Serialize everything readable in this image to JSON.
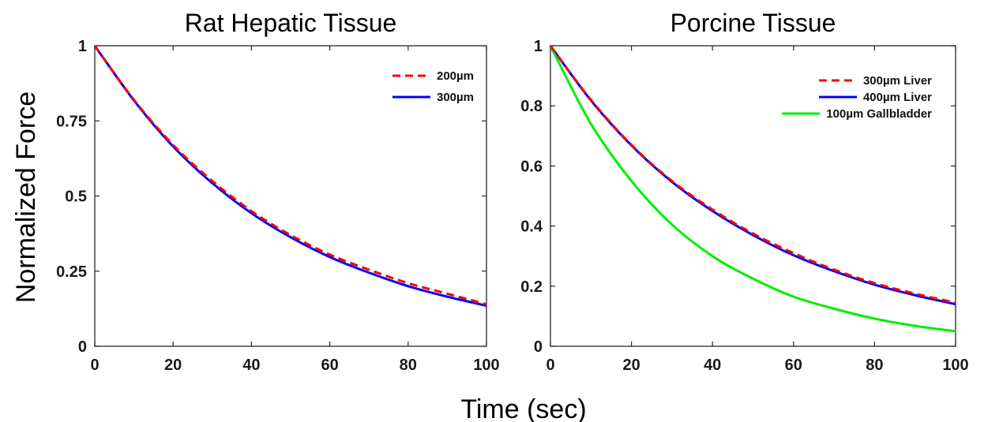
{
  "figure": {
    "ylabel": "Normalized Force",
    "xlabel": "Time (sec)"
  },
  "chart_data": [
    {
      "type": "line",
      "title": "Rat Hepatic Tissue",
      "xlabel": "",
      "ylabel": "",
      "xlim": [
        0,
        100
      ],
      "ylim": [
        0,
        1
      ],
      "xticks": [
        0,
        20,
        40,
        60,
        80,
        100
      ],
      "xtick_labels": [
        "0",
        "20",
        "40",
        "60",
        "80",
        "100"
      ],
      "yticks": [
        0,
        0.25,
        0.5,
        0.75,
        1
      ],
      "ytick_labels": [
        "0",
        "0.25",
        "0.5",
        "0.75",
        "1"
      ],
      "grid": false,
      "legend_position": "top-right",
      "x": [
        0,
        10,
        20,
        30,
        40,
        50,
        60,
        70,
        80,
        90,
        100
      ],
      "series": [
        {
          "name": "200µm",
          "color": "#ff0000",
          "dash": "dashed",
          "values": [
            1.0,
            0.82,
            0.67,
            0.55,
            0.45,
            0.37,
            0.305,
            0.255,
            0.21,
            0.175,
            0.14
          ]
        },
        {
          "name": "300µm",
          "color": "#0000ff",
          "dash": "solid",
          "values": [
            1.0,
            0.818,
            0.665,
            0.543,
            0.443,
            0.363,
            0.297,
            0.245,
            0.2,
            0.165,
            0.135
          ]
        }
      ]
    },
    {
      "type": "line",
      "title": "Porcine Tissue",
      "xlabel": "",
      "ylabel": "",
      "xlim": [
        0,
        100
      ],
      "ylim": [
        0,
        1
      ],
      "xticks": [
        0,
        20,
        40,
        60,
        80,
        100
      ],
      "xtick_labels": [
        "0",
        "20",
        "40",
        "60",
        "80",
        "100"
      ],
      "yticks": [
        0,
        0.2,
        0.4,
        0.6,
        0.8,
        1
      ],
      "ytick_labels": [
        "0",
        "0.2",
        "0.4",
        "0.6",
        "0.8",
        "1"
      ],
      "grid": false,
      "legend_position": "top-right",
      "x": [
        0,
        10,
        20,
        30,
        40,
        50,
        60,
        70,
        80,
        90,
        100
      ],
      "series": [
        {
          "name": "300µm Liver",
          "color": "#ff0000",
          "dash": "dashed",
          "values": [
            1.0,
            0.82,
            0.67,
            0.55,
            0.455,
            0.375,
            0.31,
            0.255,
            0.21,
            0.175,
            0.145
          ]
        },
        {
          "name": "400µm Liver",
          "color": "#0000ff",
          "dash": "solid",
          "values": [
            1.0,
            0.818,
            0.668,
            0.547,
            0.45,
            0.37,
            0.303,
            0.25,
            0.205,
            0.17,
            0.14
          ]
        },
        {
          "name": "100µm Gallbladder",
          "color": "#00ee00",
          "dash": "solid",
          "values": [
            1.0,
            0.74,
            0.55,
            0.405,
            0.3,
            0.225,
            0.165,
            0.125,
            0.092,
            0.068,
            0.05
          ]
        }
      ]
    }
  ]
}
